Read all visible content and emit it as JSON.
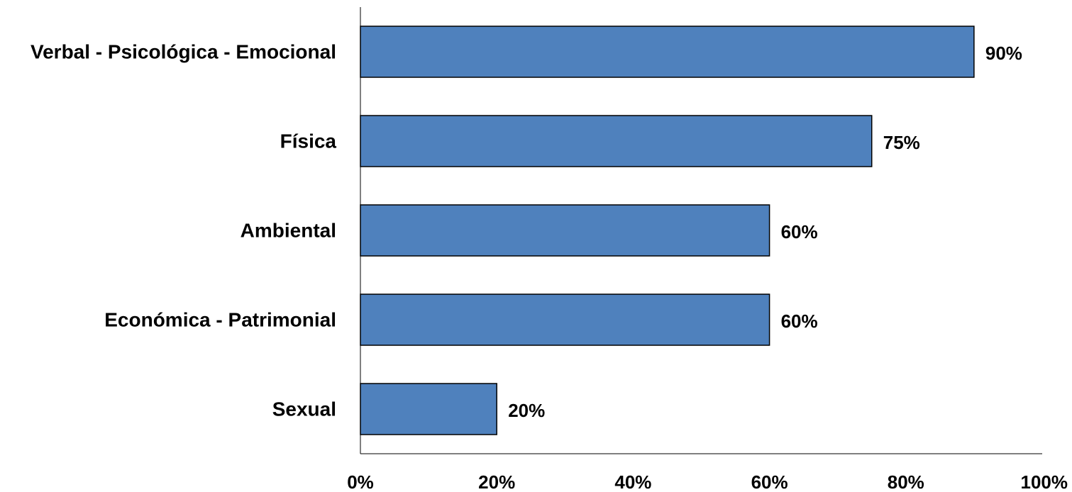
{
  "chart_data": {
    "type": "bar",
    "orientation": "horizontal",
    "categories": [
      "Verbal - Psicológica - Emocional",
      "Física",
      "Ambiental",
      "Económica - Patrimonial",
      "Sexual"
    ],
    "values": [
      90,
      75,
      60,
      60,
      20
    ],
    "value_labels": [
      "90%",
      "75%",
      "60%",
      "60%",
      "20%"
    ],
    "x_ticks": [
      0,
      20,
      40,
      60,
      80,
      100
    ],
    "x_tick_labels": [
      "0%",
      "20%",
      "40%",
      "60%",
      "80%",
      "100%"
    ],
    "xlim": [
      0,
      100
    ],
    "title": "",
    "xlabel": "",
    "ylabel": "",
    "grid": false,
    "legend": "none",
    "bar_color": "#4F81BD",
    "bar_border_color": "#000000"
  }
}
